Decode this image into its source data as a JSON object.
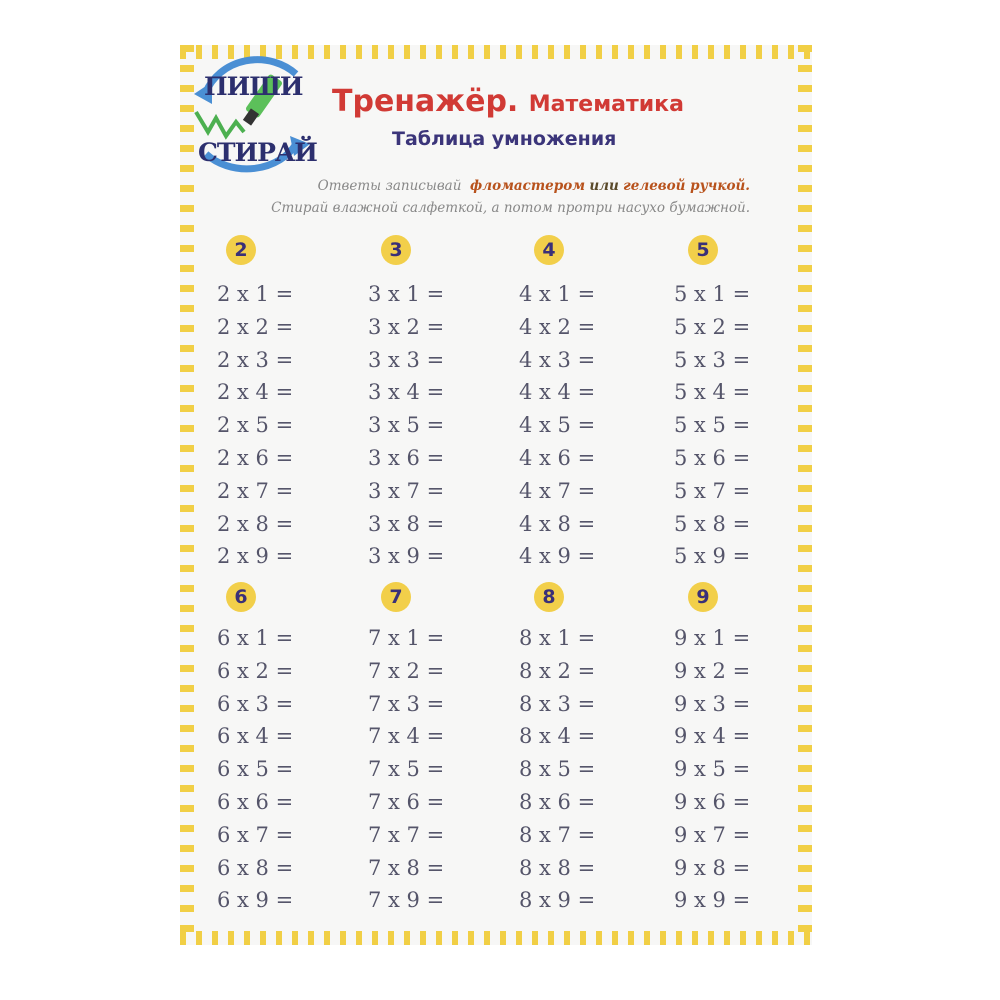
{
  "logo": {
    "top": "ПИШИ",
    "bottom": "СТИРАЙ"
  },
  "header": {
    "title": "Тренажёр.",
    "title_sub": "Математика",
    "subtitle": "Таблица умножения"
  },
  "instructions": {
    "line1_a": "Ответы записывай",
    "line1_b": "фломастером",
    "line1_c": "или",
    "line1_d": "гелевой ручкой.",
    "line2": "Стирай влажной салфеткой, а потом протри насухо бумажной."
  },
  "colors": {
    "border": "#f1cf45",
    "title": "#d13a35",
    "subtitle": "#3b357a",
    "badge": "#f2cf4a"
  },
  "tables": [
    {
      "number": "2",
      "rows": [
        "2 x 1 =",
        "2 x 2 =",
        "2 x 3 =",
        "2 x 4 =",
        "2 x 5 =",
        "2 x 6 =",
        "2 x 7 =",
        "2 x 8 =",
        "2 x 9 ="
      ]
    },
    {
      "number": "3",
      "rows": [
        "3 x 1 =",
        "3 x 2 =",
        "3 x 3 =",
        "3 x 4 =",
        "3 x 5 =",
        "3 x 6 =",
        "3 x 7 =",
        "3 x 8 =",
        "3 x 9 ="
      ]
    },
    {
      "number": "4",
      "rows": [
        "4 x 1 =",
        "4 x 2 =",
        "4 x 3 =",
        "4 x 4 =",
        "4 x 5 =",
        "4 x 6 =",
        "4 x 7 =",
        "4 x 8 =",
        "4 x 9 ="
      ]
    },
    {
      "number": "5",
      "rows": [
        "5 x 1 =",
        "5 x 2 =",
        "5 x 3 =",
        "5 x 4 =",
        "5 x 5 =",
        "5 x 6 =",
        "5 x 7 =",
        "5 x 8 =",
        "5 x 9 ="
      ]
    },
    {
      "number": "6",
      "rows": [
        "6 x 1 =",
        "6 x 2 =",
        "6 x 3 =",
        "6 x 4 =",
        "6 x 5 =",
        "6 x 6 =",
        "6 x 7 =",
        "6 x 8 =",
        "6 x 9 ="
      ]
    },
    {
      "number": "7",
      "rows": [
        "7 x 1 =",
        "7 x 2 =",
        "7 x 3 =",
        "7 x 4 =",
        "7 x 5 =",
        "7 x 6 =",
        "7 x 7 =",
        "7 x 8 =",
        "7 x 9 ="
      ]
    },
    {
      "number": "8",
      "rows": [
        "8 x 1 =",
        "8 x 2 =",
        "8 x 3 =",
        "8 x 4 =",
        "8 x 5 =",
        "8 x 6 =",
        "8 x 7 =",
        "8 x 8 =",
        "8 x 9 ="
      ]
    },
    {
      "number": "9",
      "rows": [
        "9 x 1 =",
        "9 x 2 =",
        "9 x 3 =",
        "9 x 4 =",
        "9 x 5 =",
        "9 x 6 =",
        "9 x 7 =",
        "9 x 8 =",
        "9 x 9 ="
      ]
    }
  ]
}
